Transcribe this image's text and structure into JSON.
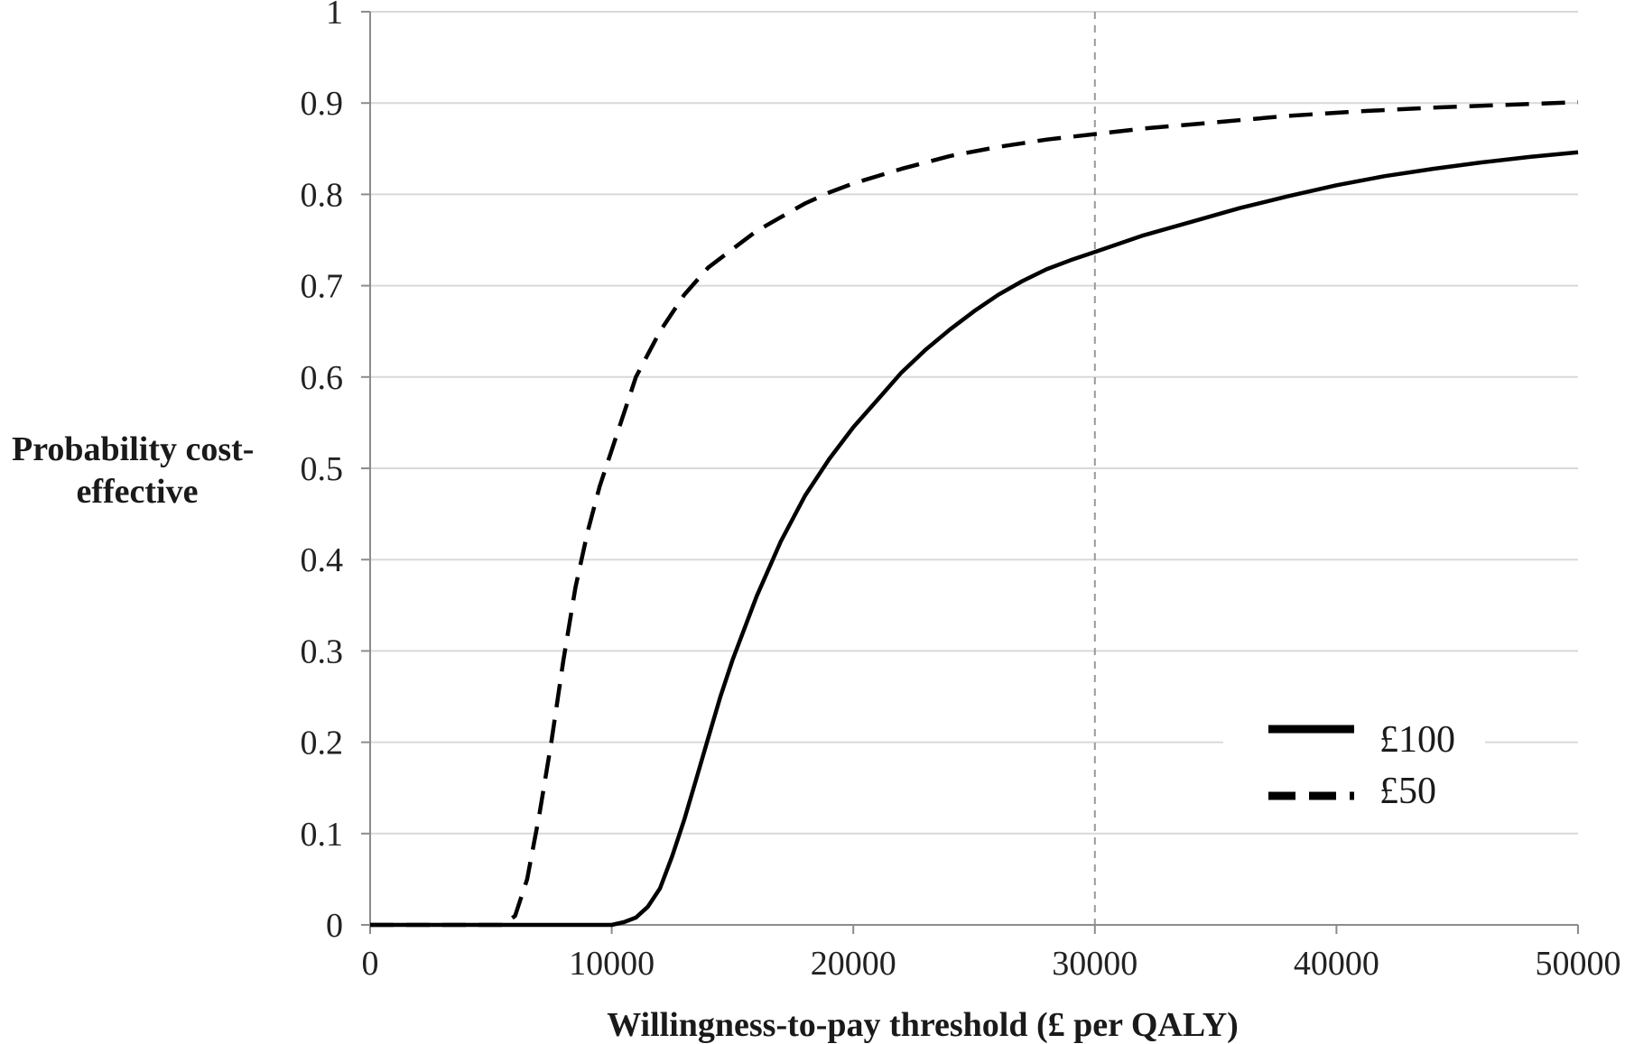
{
  "chart_data": {
    "type": "line",
    "title": "",
    "xlabel": "Willingness-to-pay threshold (£ per QALY)",
    "ylabel": [
      "Probability cost-",
      "effective"
    ],
    "xlim": [
      0,
      50000
    ],
    "ylim": [
      0,
      1
    ],
    "x_ticks": [
      "0",
      "10000",
      "20000",
      "30000",
      "40000",
      "50000"
    ],
    "y_ticks": [
      "0",
      "0.1",
      "0.2",
      "0.3",
      "0.4",
      "0.5",
      "0.6",
      "0.7",
      "0.8",
      "0.9",
      "1"
    ],
    "grid": "horizontal",
    "reference_line": {
      "x": 30000,
      "style": "dashed",
      "color": "#9a9a9a"
    },
    "legend_position": "bottom-right",
    "series": [
      {
        "name": "£100",
        "style": "solid",
        "color": "#000000",
        "x": [
          0,
          10000,
          10500,
          11000,
          11500,
          12000,
          12500,
          13000,
          13500,
          14000,
          14500,
          15000,
          16000,
          17000,
          18000,
          19000,
          20000,
          21000,
          22000,
          23000,
          24000,
          25000,
          26000,
          27000,
          28000,
          29000,
          30000,
          32000,
          34000,
          36000,
          38000,
          40000,
          42000,
          44000,
          46000,
          48000,
          50000
        ],
        "y": [
          0,
          0,
          0.003,
          0.008,
          0.02,
          0.04,
          0.075,
          0.115,
          0.16,
          0.205,
          0.25,
          0.29,
          0.36,
          0.42,
          0.47,
          0.51,
          0.545,
          0.575,
          0.605,
          0.63,
          0.652,
          0.672,
          0.69,
          0.705,
          0.718,
          0.728,
          0.737,
          0.755,
          0.77,
          0.785,
          0.798,
          0.81,
          0.82,
          0.828,
          0.835,
          0.841,
          0.846
        ]
      },
      {
        "name": "£50",
        "style": "dashed",
        "color": "#000000",
        "x": [
          0,
          5500,
          6000,
          6500,
          7000,
          7500,
          8000,
          8500,
          9000,
          9500,
          10000,
          11000,
          12000,
          13000,
          14000,
          15000,
          16000,
          17000,
          18000,
          19000,
          20000,
          22000,
          24000,
          26000,
          28000,
          30000,
          32000,
          35000,
          38000,
          41000,
          44000,
          47000,
          50000
        ],
        "y": [
          0,
          0,
          0.01,
          0.05,
          0.12,
          0.2,
          0.29,
          0.37,
          0.43,
          0.48,
          0.52,
          0.6,
          0.65,
          0.69,
          0.72,
          0.74,
          0.76,
          0.775,
          0.79,
          0.802,
          0.812,
          0.828,
          0.842,
          0.852,
          0.86,
          0.866,
          0.872,
          0.879,
          0.886,
          0.891,
          0.895,
          0.898,
          0.901
        ]
      }
    ]
  }
}
